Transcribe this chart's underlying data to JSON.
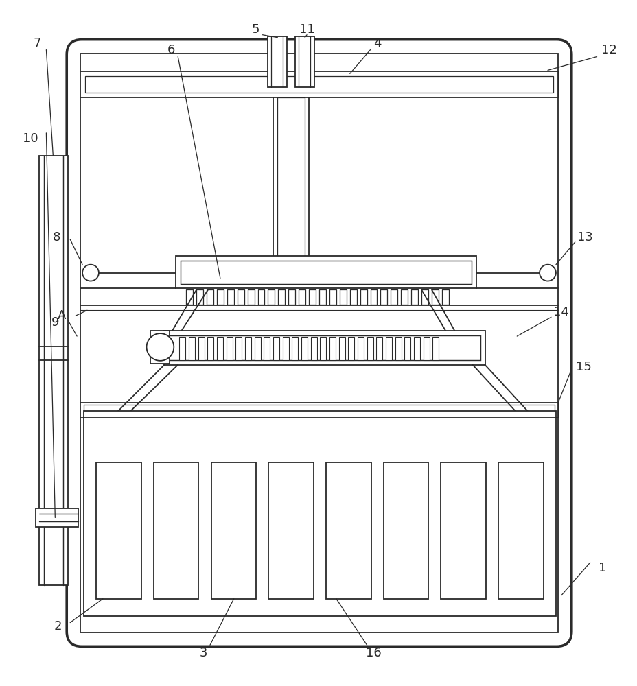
{
  "bg_color": "#ffffff",
  "line_color": "#2a2a2a",
  "lw": 1.3,
  "fig_width": 9.29,
  "fig_height": 10.0
}
